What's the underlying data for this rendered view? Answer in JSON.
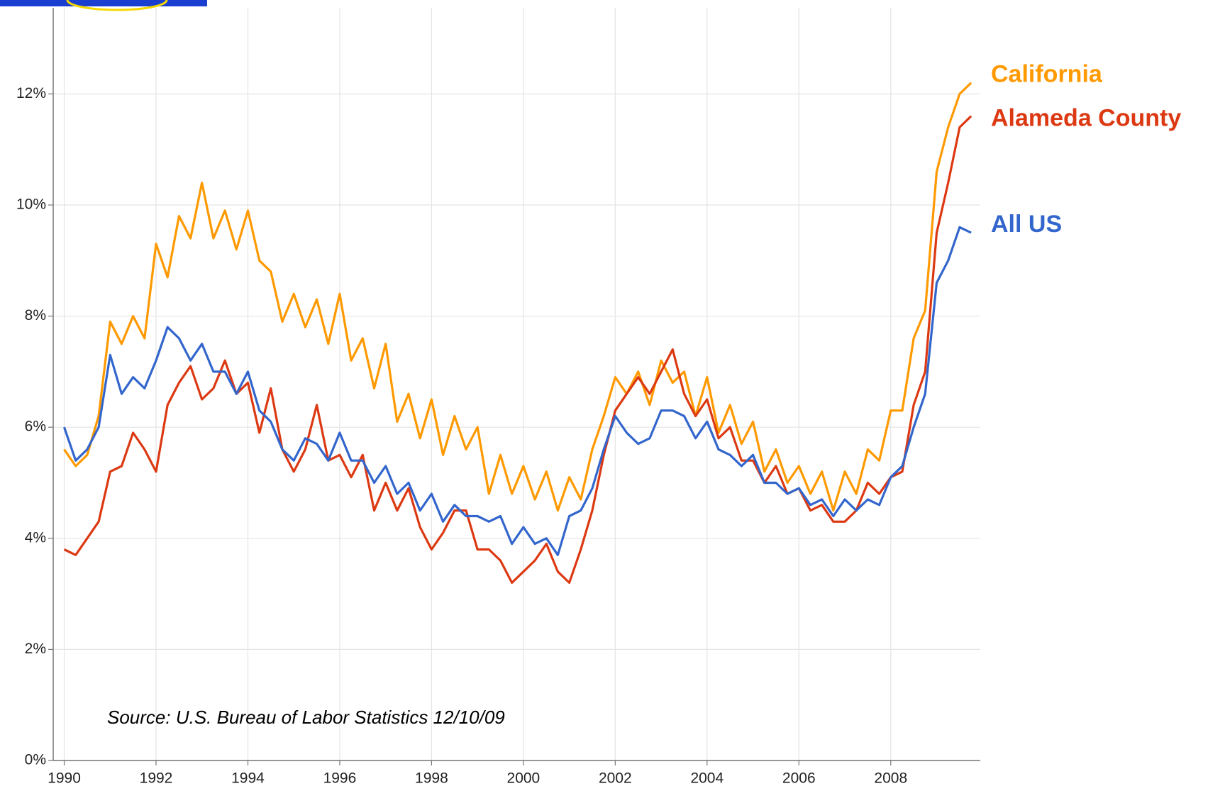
{
  "chart_data": {
    "type": "line",
    "annotation": "Source:  U.S. Bureau of Labor Statistics 12/10/09",
    "x": [
      1990,
      1990.25,
      1990.5,
      1990.75,
      1991,
      1991.25,
      1991.5,
      1991.75,
      1992,
      1992.25,
      1992.5,
      1992.75,
      1993,
      1993.25,
      1993.5,
      1993.75,
      1994,
      1994.25,
      1994.5,
      1994.75,
      1995,
      1995.25,
      1995.5,
      1995.75,
      1996,
      1996.25,
      1996.5,
      1996.75,
      1997,
      1997.25,
      1997.5,
      1997.75,
      1998,
      1998.25,
      1998.5,
      1998.75,
      1999,
      1999.25,
      1999.5,
      1999.75,
      2000,
      2000.25,
      2000.5,
      2000.75,
      2001,
      2001.25,
      2001.5,
      2001.75,
      2002,
      2002.25,
      2002.5,
      2002.75,
      2003,
      2003.25,
      2003.5,
      2003.75,
      2004,
      2004.25,
      2004.5,
      2004.75,
      2005,
      2005.25,
      2005.5,
      2005.75,
      2006,
      2006.25,
      2006.5,
      2006.75,
      2007,
      2007.25,
      2007.5,
      2007.75,
      2008,
      2008.25,
      2008.5,
      2008.75,
      2009,
      2009.25,
      2009.5,
      2009.75
    ],
    "series": [
      {
        "name": "California",
        "color": "#ff9900",
        "values": [
          5.6,
          5.3,
          5.5,
          6.2,
          7.9,
          7.5,
          8.0,
          7.6,
          9.3,
          8.7,
          9.8,
          9.4,
          10.4,
          9.4,
          9.9,
          9.2,
          9.9,
          9.0,
          8.8,
          7.9,
          8.4,
          7.8,
          8.3,
          7.5,
          8.4,
          7.2,
          7.6,
          6.7,
          7.5,
          6.1,
          6.6,
          5.8,
          6.5,
          5.5,
          6.2,
          5.6,
          6.0,
          4.8,
          5.5,
          4.8,
          5.3,
          4.7,
          5.2,
          4.5,
          5.1,
          4.7,
          5.6,
          6.2,
          6.9,
          6.6,
          7.0,
          6.4,
          7.2,
          6.8,
          7.0,
          6.2,
          6.9,
          5.9,
          6.4,
          5.7,
          6.1,
          5.2,
          5.6,
          5.0,
          5.3,
          4.8,
          5.2,
          4.5,
          5.2,
          4.8,
          5.6,
          5.4,
          6.3,
          6.3,
          7.6,
          8.1,
          10.6,
          11.4,
          12.0,
          12.2
        ]
      },
      {
        "name": "Alameda County",
        "color": "#dc3912",
        "values": [
          3.8,
          3.7,
          4.0,
          4.3,
          5.2,
          5.3,
          5.9,
          5.6,
          5.2,
          6.4,
          6.8,
          7.1,
          6.5,
          6.7,
          7.2,
          6.6,
          6.8,
          5.9,
          6.7,
          5.6,
          5.2,
          5.6,
          6.4,
          5.4,
          5.5,
          5.1,
          5.5,
          4.5,
          5.0,
          4.5,
          4.9,
          4.2,
          3.8,
          4.1,
          4.5,
          4.5,
          3.8,
          3.8,
          3.6,
          3.2,
          3.4,
          3.6,
          3.9,
          3.4,
          3.2,
          3.8,
          4.5,
          5.5,
          6.3,
          6.6,
          6.9,
          6.6,
          7.0,
          7.4,
          6.6,
          6.2,
          6.5,
          5.8,
          6.0,
          5.4,
          5.4,
          5.0,
          5.3,
          4.8,
          4.9,
          4.5,
          4.6,
          4.3,
          4.3,
          4.5,
          5.0,
          4.8,
          5.1,
          5.2,
          6.4,
          7.0,
          9.5,
          10.4,
          11.4,
          11.6
        ]
      },
      {
        "name": "All US",
        "color": "#3366cc",
        "values": [
          6.0,
          5.4,
          5.6,
          6.0,
          7.3,
          6.6,
          6.9,
          6.7,
          7.2,
          7.8,
          7.6,
          7.2,
          7.5,
          7.0,
          7.0,
          6.6,
          7.0,
          6.3,
          6.1,
          5.6,
          5.4,
          5.8,
          5.7,
          5.4,
          5.9,
          5.4,
          5.4,
          5.0,
          5.3,
          4.8,
          5.0,
          4.5,
          4.8,
          4.3,
          4.6,
          4.4,
          4.4,
          4.3,
          4.4,
          3.9,
          4.2,
          3.9,
          4.0,
          3.7,
          4.4,
          4.5,
          4.9,
          5.6,
          6.2,
          5.9,
          5.7,
          5.8,
          6.3,
          6.3,
          6.2,
          5.8,
          6.1,
          5.6,
          5.5,
          5.3,
          5.5,
          5.0,
          5.0,
          4.8,
          4.9,
          4.6,
          4.7,
          4.4,
          4.7,
          4.5,
          4.7,
          4.6,
          5.1,
          5.3,
          6.0,
          6.6,
          8.6,
          9.0,
          9.6,
          9.5
        ]
      }
    ],
    "xlim": [
      1989.76,
      2009.95
    ],
    "xticks": [
      1990,
      1992,
      1994,
      1996,
      1998,
      2000,
      2002,
      2004,
      2006,
      2008
    ],
    "ylim": [
      0,
      13.55
    ],
    "yticks": [
      {
        "value": 0,
        "label": "0%"
      },
      {
        "value": 2,
        "label": "2%"
      },
      {
        "value": 4,
        "label": "4%"
      },
      {
        "value": 6,
        "label": "6%"
      },
      {
        "value": 8,
        "label": "8%"
      },
      {
        "value": 10,
        "label": "10%"
      },
      {
        "value": 12,
        "label": "12%"
      }
    ],
    "grid": true,
    "legend": "right"
  }
}
